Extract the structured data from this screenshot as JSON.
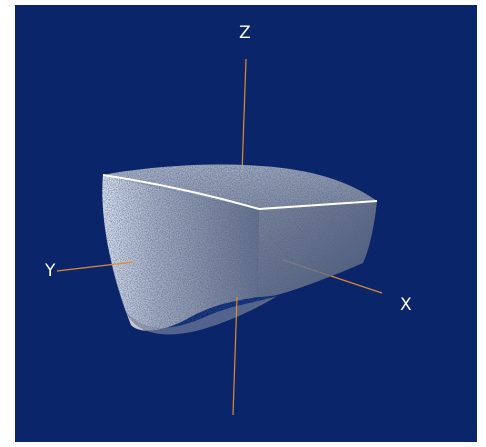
{
  "viewer": {
    "background_color": "#0a2569",
    "axis_color": "#e08a32",
    "point_color": "#d8d8d8",
    "edge_color": "#ffffff",
    "axes": {
      "x_label": "X",
      "y_label": "Y",
      "z_label": "Z"
    }
  }
}
